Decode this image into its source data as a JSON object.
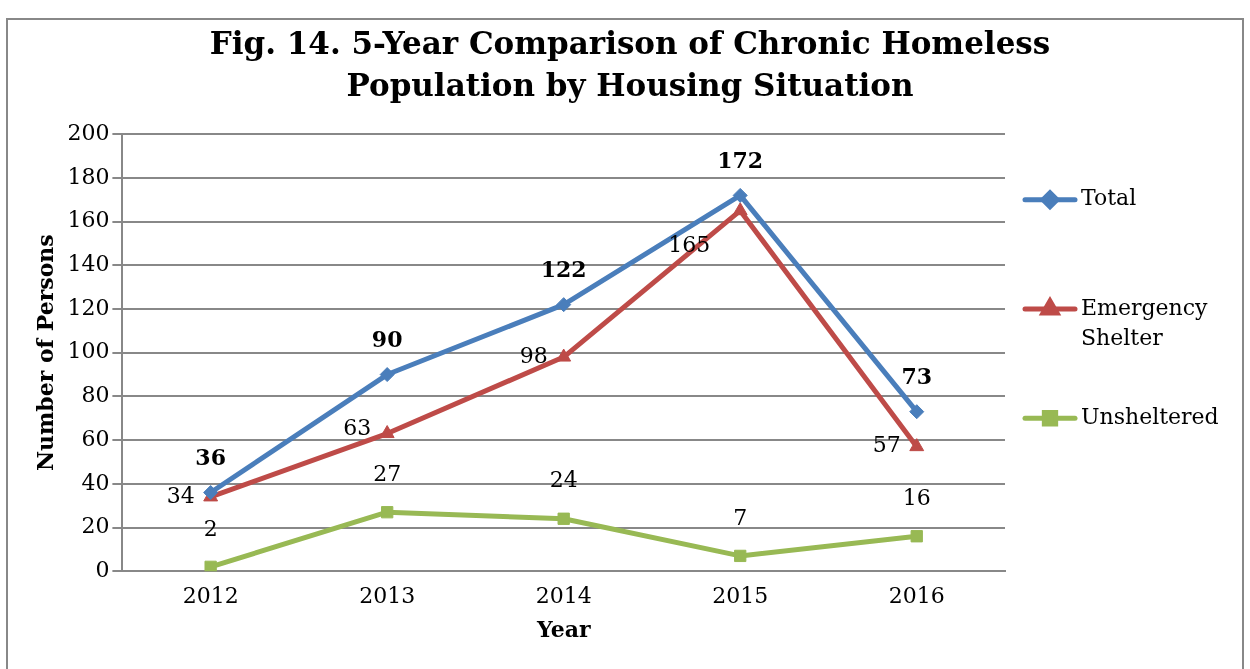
{
  "chart_data": {
    "type": "line",
    "title": "Fig. 14. 5-Year Comparison of Chronic Homeless Population by Housing Situation",
    "xlabel": "Year",
    "ylabel": "Number of Persons",
    "categories": [
      "2012",
      "2013",
      "2014",
      "2015",
      "2016"
    ],
    "series": [
      {
        "name": "Total",
        "color": "#4a7ebb",
        "values": [
          36,
          90,
          122,
          172,
          73
        ],
        "marker": "diamond"
      },
      {
        "name": "Emergency Shelter",
        "color": "#be4b48",
        "values": [
          34,
          63,
          98,
          165,
          57
        ],
        "marker": "triangle"
      },
      {
        "name": "Unsheltered",
        "color": "#98b954",
        "values": [
          2,
          27,
          24,
          7,
          16
        ],
        "marker": "square"
      }
    ],
    "ylim": [
      0,
      200
    ],
    "yticks": [
      0,
      20,
      40,
      60,
      80,
      100,
      120,
      140,
      160,
      180,
      200
    ],
    "grid": "y",
    "legend": "right",
    "data_labels": true,
    "line_style": "solid"
  }
}
